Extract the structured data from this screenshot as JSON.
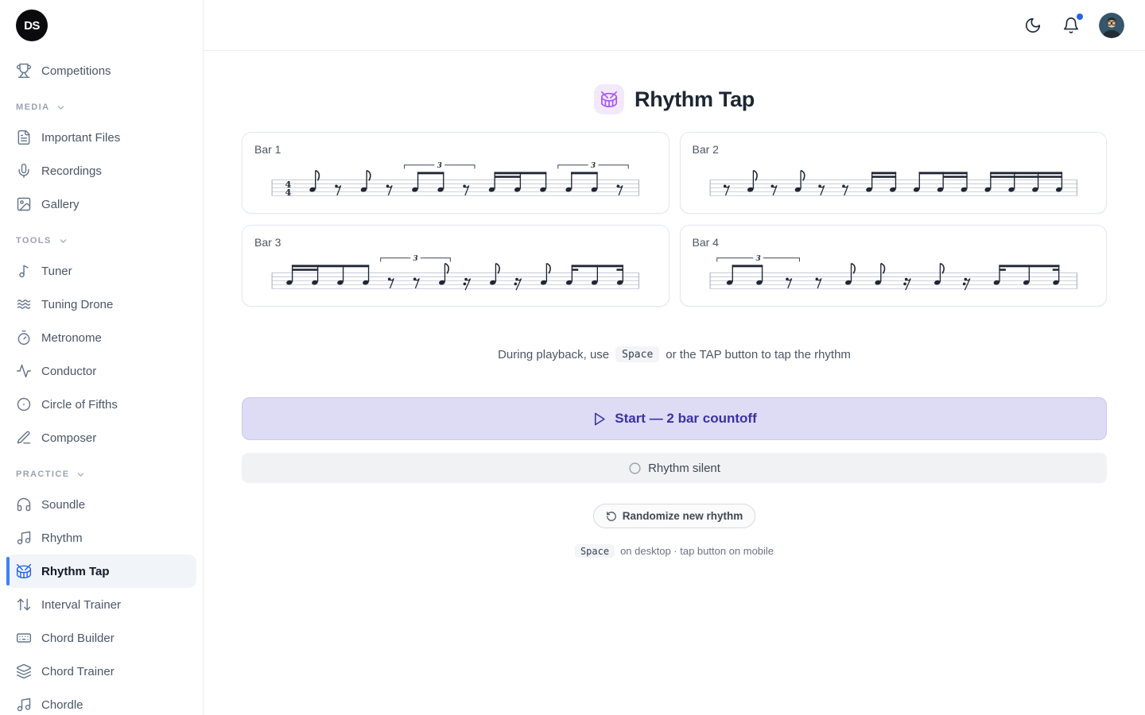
{
  "colors": {
    "accent_blue": "#3b82f6",
    "active_icon_blue": "#2563eb",
    "title_chip_purple": "#a855f7",
    "start_button_bg": "#dedbf5",
    "start_button_text": "#3a32a4",
    "notification_dot": "#2563eb"
  },
  "sidebar": {
    "logo": "DS",
    "items": [
      {
        "label": "Competitions",
        "icon": "trophy-icon"
      }
    ],
    "sections": [
      {
        "label": "MEDIA",
        "items": [
          {
            "label": "Important Files",
            "icon": "file-text-icon"
          },
          {
            "label": "Recordings",
            "icon": "mic-icon"
          },
          {
            "label": "Gallery",
            "icon": "image-icon"
          }
        ]
      },
      {
        "label": "TOOLS",
        "items": [
          {
            "label": "Tuner",
            "icon": "note-icon"
          },
          {
            "label": "Tuning Drone",
            "icon": "waves-icon"
          },
          {
            "label": "Metronome",
            "icon": "timer-icon"
          },
          {
            "label": "Conductor",
            "icon": "activity-icon"
          },
          {
            "label": "Circle of Fifths",
            "icon": "circle-dot-icon"
          },
          {
            "label": "Composer",
            "icon": "pen-icon"
          }
        ]
      },
      {
        "label": "PRACTICE",
        "items": [
          {
            "label": "Soundle",
            "icon": "headphones-icon"
          },
          {
            "label": "Rhythm",
            "icon": "music-notes-icon"
          },
          {
            "label": "Rhythm Tap",
            "icon": "drum-icon",
            "active": true
          },
          {
            "label": "Interval Trainer",
            "icon": "arrows-up-down-icon"
          },
          {
            "label": "Chord Builder",
            "icon": "keyboard-icon"
          },
          {
            "label": "Chord Trainer",
            "icon": "layers-icon"
          },
          {
            "label": "Chordle",
            "icon": "music-notes-icon"
          }
        ]
      }
    ]
  },
  "header": {
    "icons": [
      "moon-icon",
      "bell-icon",
      "avatar"
    ],
    "has_notification": true
  },
  "main": {
    "title": "Rhythm Tap",
    "bars": [
      {
        "label": "Bar 1",
        "time_signature": "4/4",
        "events": [
          {
            "t": "ts"
          },
          {
            "t": "n8"
          },
          {
            "t": "r8"
          },
          {
            "t": "n8"
          },
          {
            "t": "r8"
          },
          {
            "t": "trip",
            "e": [
              "n",
              "n",
              "r"
            ]
          },
          {
            "t": "b",
            "n": 3,
            "sec": [
              [
                0,
                1
              ]
            ]
          },
          {
            "t": "trip",
            "e": [
              "n",
              "n",
              "r"
            ]
          }
        ]
      },
      {
        "label": "Bar 2",
        "events": [
          {
            "t": "r8"
          },
          {
            "t": "n8"
          },
          {
            "t": "r8"
          },
          {
            "t": "n8"
          },
          {
            "t": "r8"
          },
          {
            "t": "r8"
          },
          {
            "t": "b",
            "n": 2,
            "sec": [
              [
                0,
                1
              ]
            ]
          },
          {
            "t": "b",
            "n": 3,
            "sec": [
              [
                1,
                2
              ]
            ]
          },
          {
            "t": "b",
            "n": 4,
            "sec": [
              [
                0,
                3
              ]
            ]
          }
        ]
      },
      {
        "label": "Bar 3",
        "events": [
          {
            "t": "b",
            "n": 4,
            "sec": [
              [
                0,
                1
              ]
            ]
          },
          {
            "t": "trip",
            "e": [
              "r",
              "r",
              "n"
            ]
          },
          {
            "t": "r16"
          },
          {
            "t": "n8"
          },
          {
            "t": "r16"
          },
          {
            "t": "n8"
          },
          {
            "t": "b",
            "n": 3,
            "sec": [
              [
                0,
                0
              ],
              [
                2,
                2
              ]
            ]
          }
        ]
      },
      {
        "label": "Bar 4",
        "events": [
          {
            "t": "trip",
            "e": [
              "n",
              "n",
              "r"
            ]
          },
          {
            "t": "r8"
          },
          {
            "t": "n8"
          },
          {
            "t": "n8"
          },
          {
            "t": "r16"
          },
          {
            "t": "n8"
          },
          {
            "t": "r16"
          },
          {
            "t": "b",
            "n": 3,
            "sec": [
              [
                0,
                0
              ],
              [
                2,
                2
              ]
            ]
          }
        ]
      }
    ],
    "hint": {
      "before": "During playback, use",
      "kbd": "Space",
      "after": "or the TAP button to tap the rhythm"
    },
    "start_button": "Start — 2 bar countoff",
    "silent_button": "Rhythm silent",
    "randomize_button": "Randomize new rhythm",
    "footer": {
      "kbd": "Space",
      "text": "on desktop · tap button on mobile"
    }
  }
}
